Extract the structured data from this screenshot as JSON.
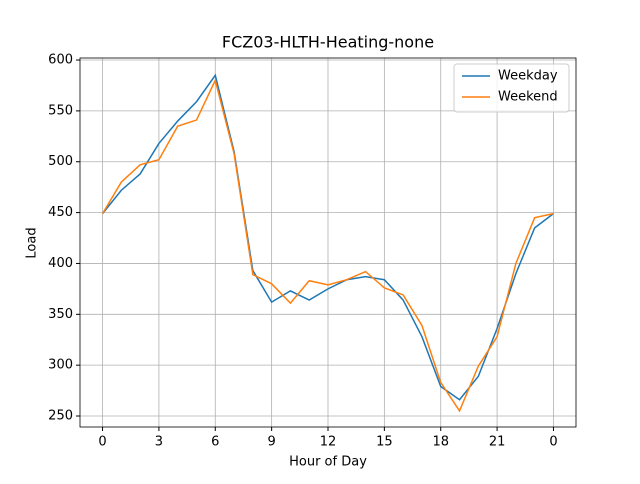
{
  "chart_data": {
    "type": "line",
    "title": "FCZ03-HLTH-Heating-none",
    "x_label": "Hour of Day",
    "y_label": "Load",
    "x": [
      0,
      1,
      2,
      3,
      4,
      5,
      6,
      7,
      8,
      9,
      10,
      11,
      12,
      13,
      14,
      15,
      16,
      17,
      18,
      19,
      20,
      21,
      22,
      23,
      24
    ],
    "series": [
      {
        "name": "Weekday",
        "color": "#1f77b4",
        "values": [
          449,
          472,
          488,
          518,
          540,
          559,
          585,
          510,
          393,
          362,
          373,
          364,
          375,
          384,
          387,
          384,
          364,
          328,
          279,
          266,
          289,
          336,
          390,
          435,
          449
        ]
      },
      {
        "name": "Weekend",
        "color": "#ff7f0e",
        "values": [
          449,
          480,
          497,
          502,
          535,
          541,
          580,
          508,
          389,
          380,
          361,
          383,
          379,
          384,
          392,
          376,
          369,
          339,
          283,
          255,
          299,
          328,
          400,
          445,
          449
        ]
      }
    ],
    "xlim": [
      -1.2,
      25.2
    ],
    "xticks": [
      0,
      3,
      6,
      9,
      12,
      15,
      18,
      21,
      {
        "value": 24,
        "label": "0"
      }
    ],
    "ylim": [
      239.2,
      602
    ],
    "yticks": [
      250,
      300,
      350,
      400,
      450,
      500,
      550,
      600
    ],
    "grid": true,
    "legend": "upper right"
  }
}
